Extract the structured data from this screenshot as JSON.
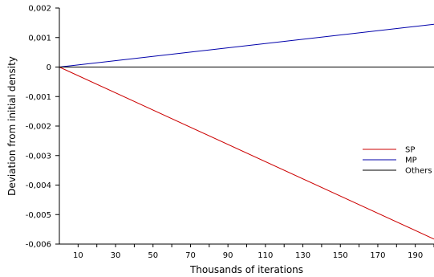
{
  "chart_data": {
    "type": "line",
    "xlabel": "Thousands of iterations",
    "ylabel": "Deviation from initial density",
    "xlim": [
      0,
      200
    ],
    "ylim": [
      -0.006,
      0.002
    ],
    "x_ticks": [
      10,
      20,
      30,
      40,
      50,
      60,
      70,
      80,
      90,
      100,
      110,
      120,
      130,
      140,
      150,
      160,
      170,
      180,
      190,
      200
    ],
    "x_tick_labels": [
      {
        "value": 10,
        "label": "10"
      },
      {
        "value": 30,
        "label": "30"
      },
      {
        "value": 50,
        "label": "50"
      },
      {
        "value": 70,
        "label": "70"
      },
      {
        "value": 90,
        "label": "90"
      },
      {
        "value": 110,
        "label": "110"
      },
      {
        "value": 130,
        "label": "130"
      },
      {
        "value": 150,
        "label": "150"
      },
      {
        "value": 170,
        "label": "170"
      },
      {
        "value": 190,
        "label": "190"
      }
    ],
    "y_ticks": [
      {
        "value": 0.002,
        "label": "0,002"
      },
      {
        "value": 0.001,
        "label": "0,001"
      },
      {
        "value": 0,
        "label": "0"
      },
      {
        "value": -0.001,
        "label": "-0,001"
      },
      {
        "value": -0.002,
        "label": "-0,002"
      },
      {
        "value": -0.003,
        "label": "-0,003"
      },
      {
        "value": -0.004,
        "label": "-0,004"
      },
      {
        "value": -0.005,
        "label": "-0,005"
      },
      {
        "value": -0.006,
        "label": "-0,006"
      }
    ],
    "grid": false,
    "legend_position": "right",
    "series": [
      {
        "name": "SP",
        "color": "#cc0000",
        "x": [
          0,
          200
        ],
        "y": [
          0,
          -0.00583
        ]
      },
      {
        "name": "MP",
        "color": "#0000aa",
        "x": [
          0,
          200
        ],
        "y": [
          0,
          0.00145
        ]
      },
      {
        "name": "Others",
        "color": "#000000",
        "x": [
          0,
          200
        ],
        "y": [
          0,
          0
        ]
      }
    ]
  }
}
